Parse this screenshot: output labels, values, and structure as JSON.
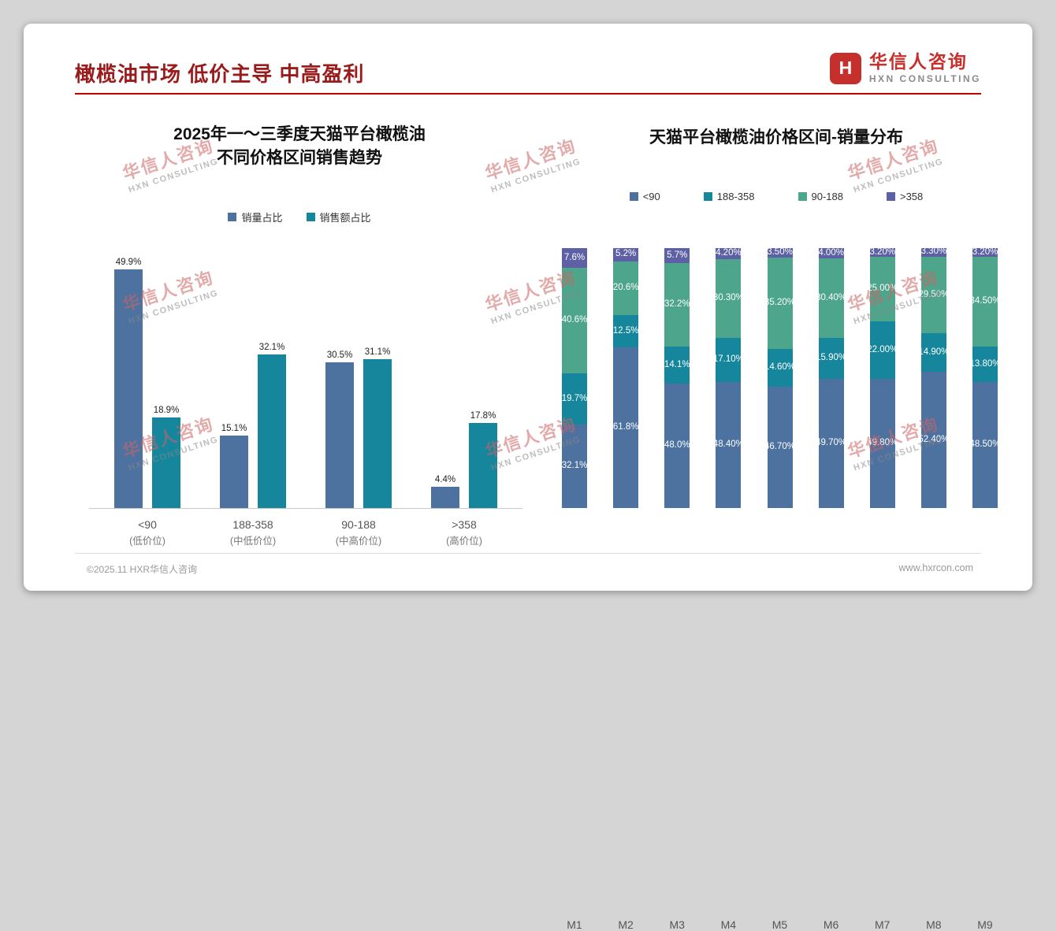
{
  "page": {
    "title": "橄榄油市场 低价主导 中高盈利",
    "logo": {
      "icon_glyph": "H",
      "name": "华信人咨询",
      "subtitle": "HXN CONSULTING"
    },
    "watermark": {
      "line1": "华信人咨询",
      "line2": "HXN CONSULTING"
    },
    "footer": {
      "left": "©2025.11 HXR华信人咨询",
      "right": "www.hxrcon.com"
    }
  },
  "colors": {
    "title_red": "#9a1b1b",
    "rule_red": "#c00000",
    "logo_red": "#c5302d",
    "series_blue": "#4e72a0",
    "series_teal": "#16869c",
    "series_green": "#4da58c",
    "series_purple": "#5d60a5"
  },
  "chart_data": [
    {
      "type": "bar",
      "subtype": "grouped",
      "title": "2025年一～三季度天猫平台橄榄油\n不同价格区间销售趋势",
      "categories": [
        "<90",
        "188-358",
        "90-188",
        ">358"
      ],
      "category_sublabels": [
        "(低价位)",
        "(中低价位)",
        "(中高价位)",
        "(高价位)"
      ],
      "series": [
        {
          "name": "销量占比",
          "color": "#4e72a0",
          "values": [
            49.9,
            15.1,
            30.5,
            4.4
          ],
          "labels": [
            "49.9%",
            "15.1%",
            "30.5%",
            "4.4%"
          ]
        },
        {
          "name": "销售额占比",
          "color": "#16869c",
          "values": [
            18.9,
            32.1,
            31.1,
            17.8
          ],
          "labels": [
            "18.9%",
            "32.1%",
            "31.1%",
            "17.8%"
          ]
        }
      ],
      "ylim": [
        0,
        55
      ],
      "grid": false,
      "legend_position": "top",
      "value_suffix": "%"
    },
    {
      "type": "bar",
      "subtype": "stacked_100pct",
      "title": "天猫平台橄榄油价格区间-销量分布",
      "categories": [
        "M1",
        "M2",
        "M3",
        "M4",
        "M5",
        "M6",
        "M7",
        "M8",
        "M9"
      ],
      "series": [
        {
          "name": "<90",
          "color": "#4e72a0",
          "values": [
            32.1,
            61.8,
            48.0,
            48.4,
            46.7,
            49.7,
            49.8,
            52.4,
            48.5
          ],
          "labels": [
            "32.1%",
            "61.8%",
            "48.0%",
            "48.40%",
            "46.70%",
            "49.70%",
            "49.80%",
            "52.40%",
            "48.50%"
          ]
        },
        {
          "name": "188-358",
          "color": "#16869c",
          "values": [
            19.7,
            12.5,
            14.1,
            17.1,
            14.6,
            15.9,
            22.0,
            14.9,
            13.8
          ],
          "labels": [
            "19.7%",
            "12.5%",
            "14.1%",
            "17.10%",
            "14.60%",
            "15.90%",
            "22.00%",
            "14.90%",
            "13.80%"
          ]
        },
        {
          "name": "90-188",
          "color": "#4da58c",
          "values": [
            40.6,
            20.6,
            32.2,
            30.3,
            35.2,
            30.4,
            25.0,
            29.5,
            34.5
          ],
          "labels": [
            "40.6%",
            "20.6%",
            "32.2%",
            "30.30%",
            "35.20%",
            "30.40%",
            "25.00%",
            "29.50%",
            "34.50%"
          ]
        },
        {
          "name": ">358",
          "color": "#5d60a5",
          "values": [
            7.6,
            5.2,
            5.7,
            4.2,
            3.5,
            4.0,
            3.2,
            3.3,
            3.2
          ],
          "labels": [
            "7.6%",
            "5.2%",
            "5.7%",
            "4.20%",
            "3.50%",
            "4.00%",
            "3.20%",
            "3.30%",
            "3.20%"
          ]
        }
      ],
      "ylim": [
        0,
        100
      ],
      "grid": false,
      "legend_position": "top",
      "value_suffix": "%"
    }
  ]
}
